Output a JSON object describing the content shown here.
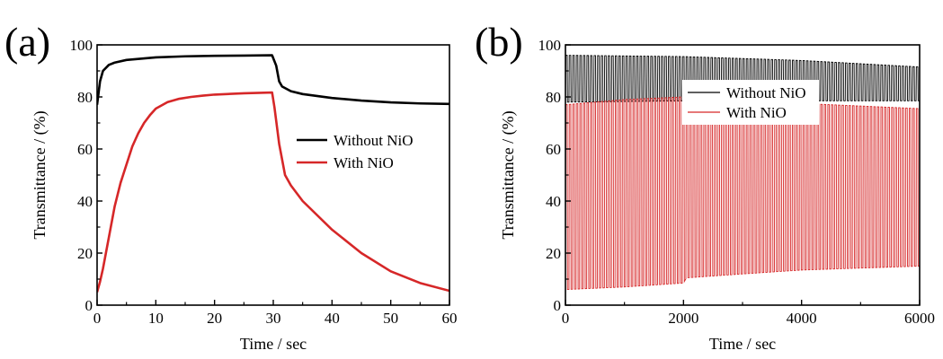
{
  "chart_data": [
    {
      "panel_label": "(a)",
      "type": "line",
      "xlabel": "Time / sec",
      "ylabel": "Transmittance / (%)",
      "xlim": [
        0,
        60
      ],
      "ylim": [
        0,
        100
      ],
      "xticks": [
        "0",
        "10",
        "20",
        "30",
        "40",
        "50",
        "60"
      ],
      "yticks": [
        "0",
        "20",
        "40",
        "60",
        "80",
        "100"
      ],
      "legend_position": "right-middle",
      "series": [
        {
          "name": "Without NiO",
          "color": "#000000",
          "points": [
            [
              0,
              77
            ],
            [
              0.5,
              86
            ],
            [
              1,
              90
            ],
            [
              2,
              92.3
            ],
            [
              3,
              93.2
            ],
            [
              5,
              94.2
            ],
            [
              10,
              95.2
            ],
            [
              15,
              95.6
            ],
            [
              20,
              95.8
            ],
            [
              25,
              95.9
            ],
            [
              29.8,
              96
            ],
            [
              30.5,
              92
            ],
            [
              31,
              86
            ],
            [
              31.5,
              84
            ],
            [
              33,
              82.2
            ],
            [
              35,
              81.1
            ],
            [
              40,
              79.6
            ],
            [
              45,
              78.6
            ],
            [
              50,
              77.9
            ],
            [
              55,
              77.5
            ],
            [
              60,
              77.3
            ]
          ]
        },
        {
          "name": "With NiO",
          "color": "#d62728",
          "points": [
            [
              0,
              5
            ],
            [
              0.5,
              9
            ],
            [
              1,
              14
            ],
            [
              2,
              26
            ],
            [
              3,
              38
            ],
            [
              4,
              47
            ],
            [
              5,
              54
            ],
            [
              6,
              61
            ],
            [
              7,
              66
            ],
            [
              8,
              70
            ],
            [
              9,
              73
            ],
            [
              10,
              75.5
            ],
            [
              12,
              78
            ],
            [
              14,
              79.3
            ],
            [
              16,
              80
            ],
            [
              18,
              80.5
            ],
            [
              20,
              80.9
            ],
            [
              25,
              81.4
            ],
            [
              29.8,
              81.7
            ],
            [
              30.2,
              76
            ],
            [
              31,
              62
            ],
            [
              32,
              50
            ],
            [
              33,
              46
            ],
            [
              35,
              40
            ],
            [
              40,
              29
            ],
            [
              45,
              20
            ],
            [
              50,
              13
            ],
            [
              55,
              8.5
            ],
            [
              60,
              5.5
            ]
          ]
        }
      ]
    },
    {
      "panel_label": "(b)",
      "type": "line",
      "xlabel": "Time / sec",
      "ylabel": "Transmittance / (%)",
      "xlim": [
        0,
        6000
      ],
      "ylim": [
        0,
        100
      ],
      "xticks": [
        "0",
        "2000",
        "4000",
        "6000"
      ],
      "yticks": [
        "0",
        "20",
        "40",
        "60",
        "80",
        "100"
      ],
      "legend_position": "top-right",
      "series": [
        {
          "name": "Without NiO",
          "color": "#000000",
          "cycles": 100,
          "max_envelope": [
            [
              0,
              96
            ],
            [
              2000,
              95.5
            ],
            [
              4000,
              94
            ],
            [
              6000,
              91.5
            ]
          ],
          "min_envelope": [
            [
              0,
              78
            ],
            [
              2000,
              78.5
            ],
            [
              4000,
              78.5
            ],
            [
              6000,
              78.5
            ]
          ]
        },
        {
          "name": "With NiO",
          "color": "#d62728",
          "cycles": 100,
          "max_envelope": [
            [
              0,
              77
            ],
            [
              1000,
              79
            ],
            [
              2000,
              80
            ],
            [
              3000,
              78.5
            ],
            [
              4000,
              77.5
            ],
            [
              6000,
              75.5
            ]
          ],
          "min_envelope": [
            [
              0,
              6
            ],
            [
              1000,
              7
            ],
            [
              2000,
              8.5
            ],
            [
              2050,
              10.5
            ],
            [
              3000,
              12
            ],
            [
              4000,
              13.5
            ],
            [
              6000,
              15
            ]
          ]
        }
      ]
    }
  ]
}
